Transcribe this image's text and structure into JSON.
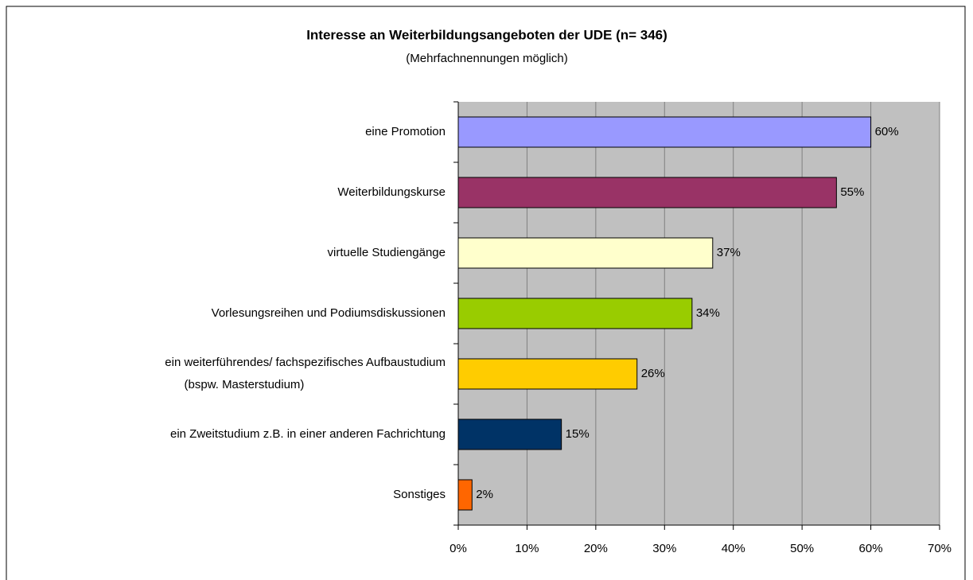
{
  "chart_data": {
    "type": "barh",
    "title": "Interesse an Weiterbildungsangeboten der UDE (n= 346)",
    "subtitle": "(Mehrfachnennungen möglich)",
    "categories": [
      "eine Promotion",
      "Weiterbildungskurse",
      "virtuelle Studiengänge",
      "Vorlesungsreihen und Podiumsdiskussionen",
      "ein weiterführendes/ fachspezifisches Aufbaustudium\n(bspw. Masterstudium)",
      "ein Zweitstudium z.B. in einer anderen Fachrichtung",
      "Sonstiges"
    ],
    "values": [
      60,
      55,
      37,
      34,
      26,
      15,
      2
    ],
    "value_labels": [
      "60%",
      "55%",
      "37%",
      "34%",
      "26%",
      "15%",
      "2%"
    ],
    "colors": [
      "#9999ff",
      "#993366",
      "#ffffcc",
      "#99cc00",
      "#ffcc00",
      "#003366",
      "#ff6600"
    ],
    "xlim": [
      0,
      70
    ],
    "xticks": [
      {
        "value": 0,
        "label": "0%"
      },
      {
        "value": 10,
        "label": "10%"
      },
      {
        "value": 20,
        "label": "20%"
      },
      {
        "value": 30,
        "label": "30%"
      },
      {
        "value": 40,
        "label": "40%"
      },
      {
        "value": 50,
        "label": "50%"
      },
      {
        "value": 60,
        "label": "60%"
      },
      {
        "value": 70,
        "label": "70%"
      }
    ],
    "grid": true
  }
}
